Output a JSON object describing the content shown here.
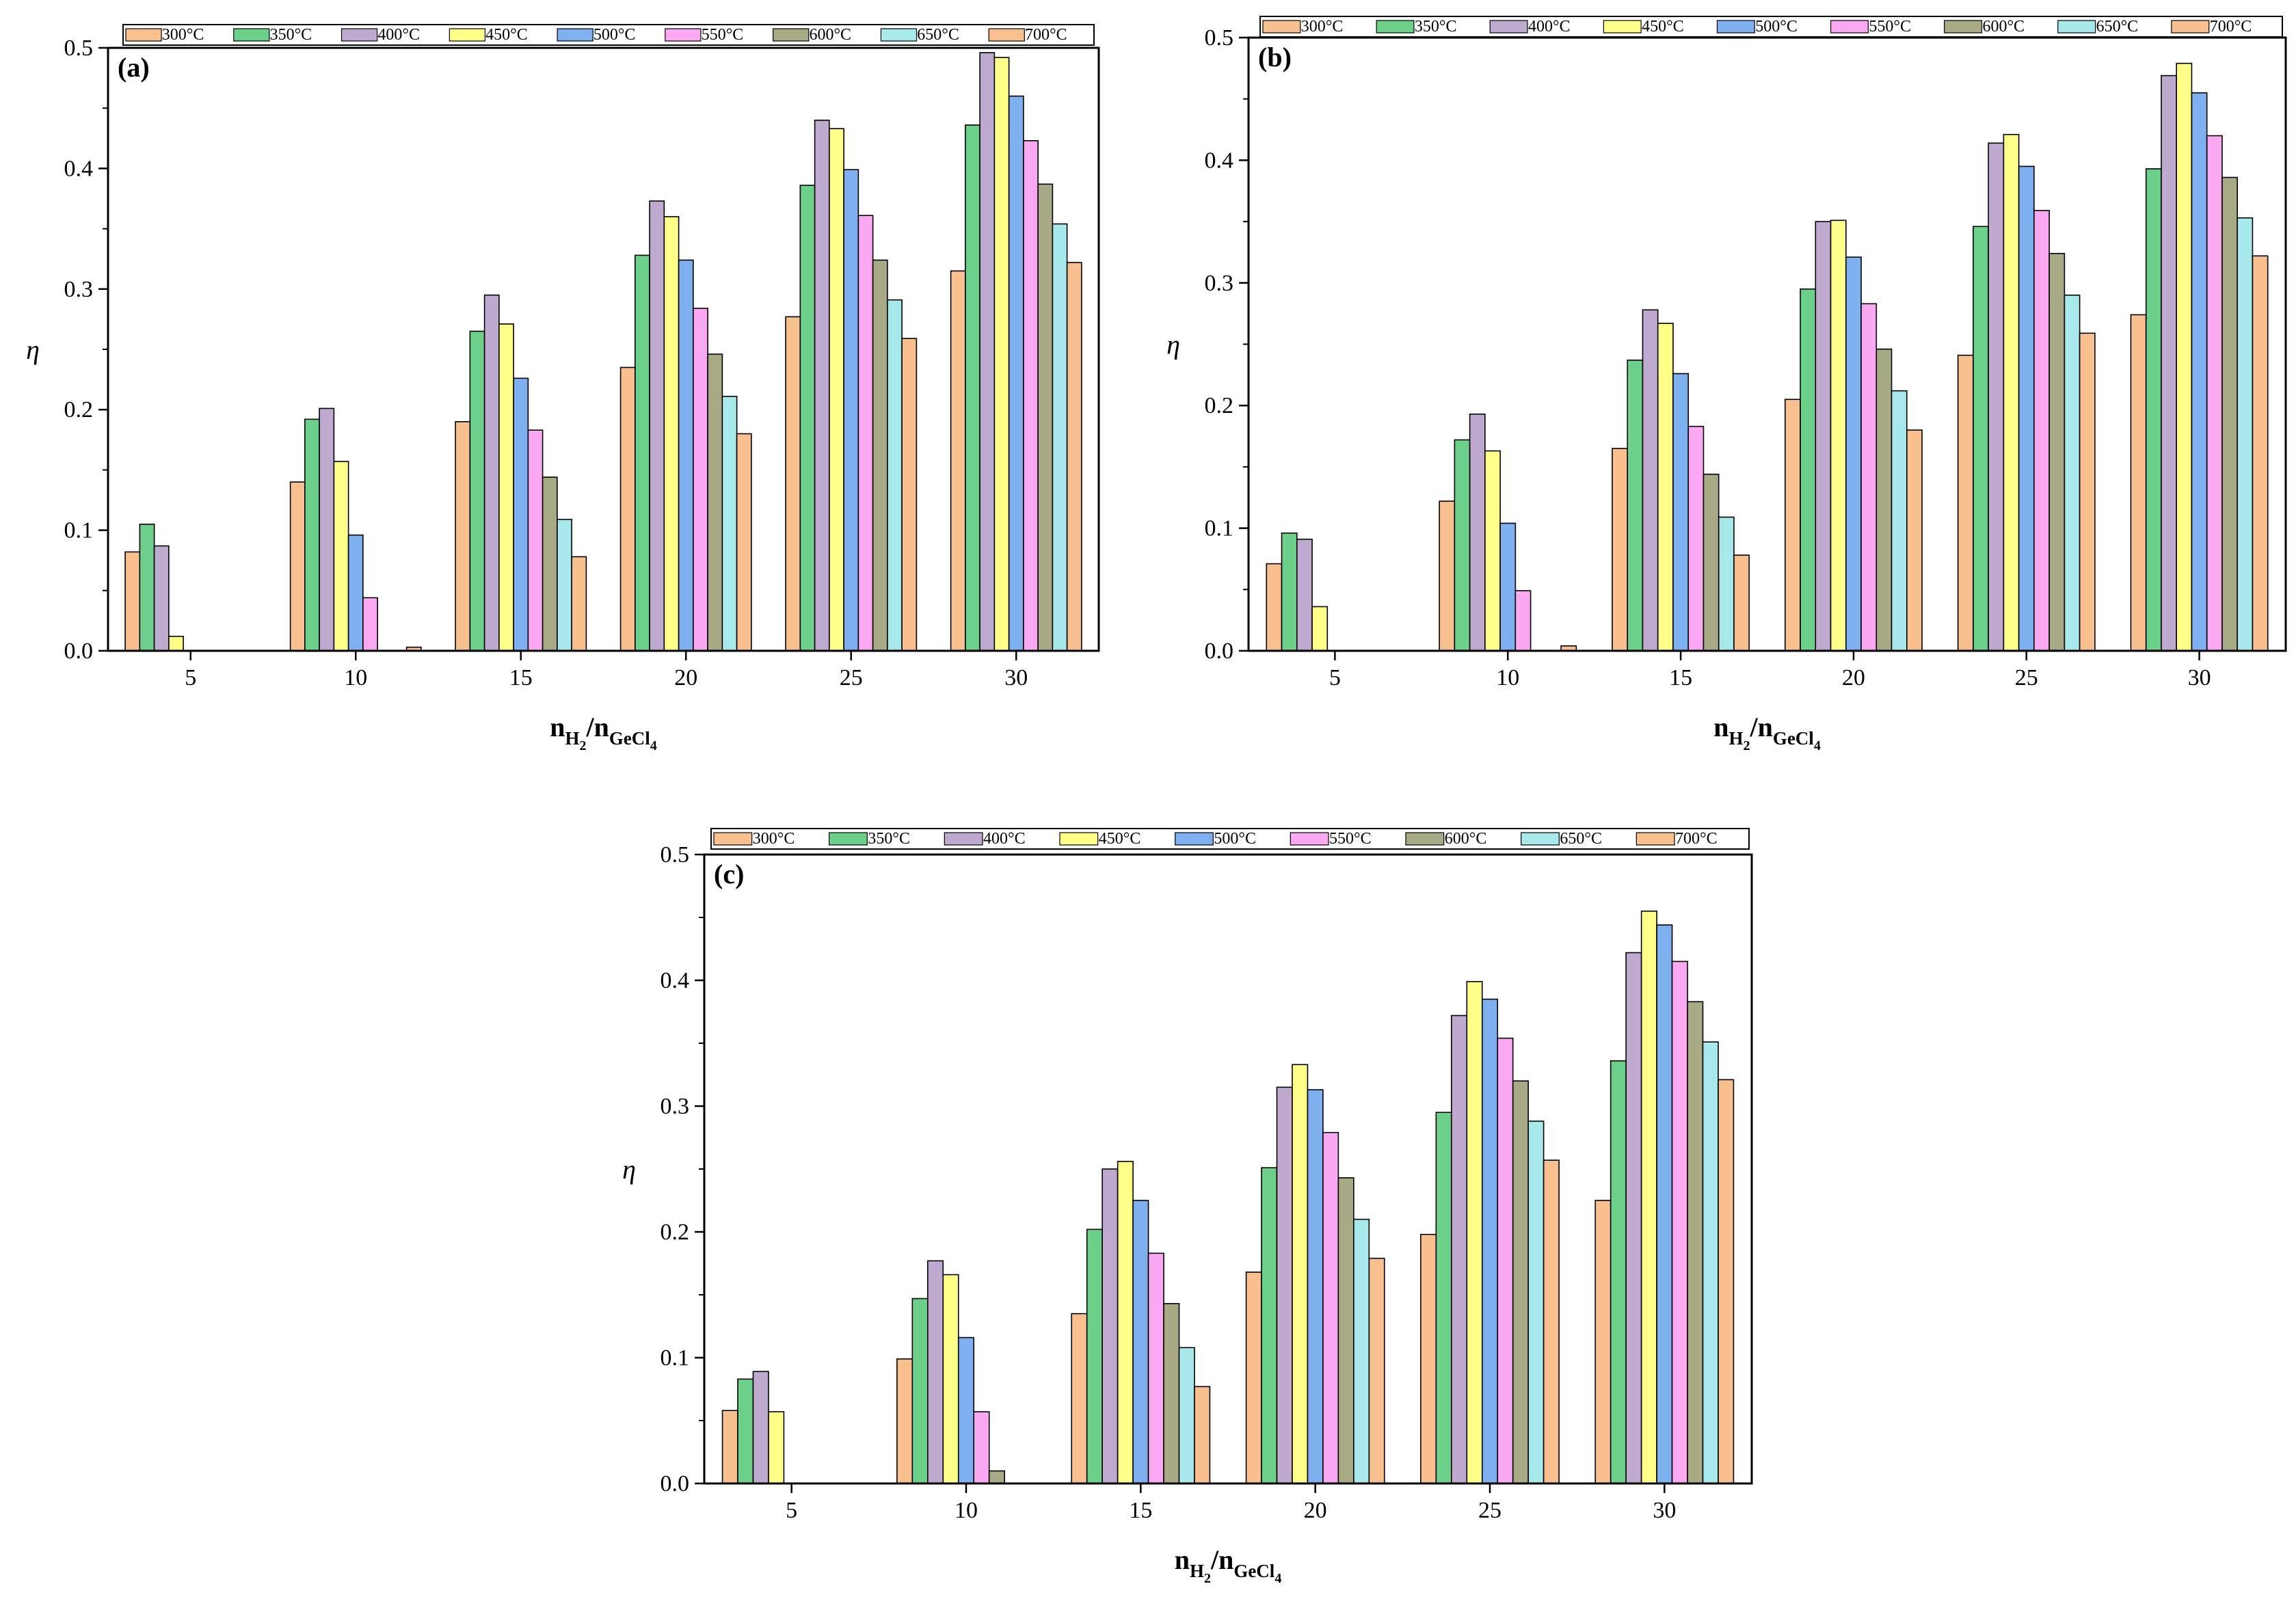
{
  "series_style": {
    "names": [
      "300°C",
      "350°C",
      "400°C",
      "450°C",
      "500°C",
      "550°C",
      "600°C",
      "650°C",
      "700°C"
    ],
    "colors": [
      "#F9C08F",
      "#6DD08A",
      "#BFAACF",
      "#FFFF8A",
      "#7EB0F0",
      "#FBA8F3",
      "#A8A985",
      "#A7E8EA",
      "#F9C08F"
    ]
  },
  "axes": {
    "ylabel": "η",
    "xlabel_main": "n",
    "xlabel_sub1": "H",
    "xlabel_sub1b": "2",
    "xlabel_sep": "/n",
    "xlabel_sub2": "GeCl",
    "xlabel_sub2b": "4"
  },
  "chart_data": [
    {
      "type": "bar",
      "title": "(a)",
      "categories": [
        "5",
        "10",
        "15",
        "20",
        "25",
        "30"
      ],
      "ylim": [
        0,
        0.5
      ],
      "yticks": [
        "0.0",
        "0.1",
        "0.2",
        "0.3",
        "0.4",
        "0.5"
      ],
      "ylabel": "η",
      "xlabel": "nH2/nGeCl4",
      "series": [
        {
          "name": "300°C",
          "values": [
            0.082,
            0.14,
            0.19,
            0.235,
            0.277,
            0.315
          ]
        },
        {
          "name": "350°C",
          "values": [
            0.105,
            0.192,
            0.265,
            0.328,
            0.386,
            0.436
          ]
        },
        {
          "name": "400°C",
          "values": [
            0.087,
            0.201,
            0.295,
            0.373,
            0.44,
            0.496
          ]
        },
        {
          "name": "450°C",
          "values": [
            0.012,
            0.157,
            0.271,
            0.36,
            0.433,
            0.492
          ]
        },
        {
          "name": "500°C",
          "values": [
            0.0,
            0.096,
            0.226,
            0.324,
            0.399,
            0.46
          ]
        },
        {
          "name": "550°C",
          "values": [
            0.0,
            0.044,
            0.183,
            0.284,
            0.361,
            0.423
          ]
        },
        {
          "name": "600°C",
          "values": [
            0.0,
            0.0,
            0.144,
            0.246,
            0.324,
            0.387
          ]
        },
        {
          "name": "650°C",
          "values": [
            0.0,
            0.0,
            0.109,
            0.211,
            0.291,
            0.354
          ]
        },
        {
          "name": "700°C",
          "values": [
            0.0,
            0.003,
            0.078,
            0.18,
            0.259,
            0.322
          ]
        }
      ]
    },
    {
      "type": "bar",
      "title": "(b)",
      "categories": [
        "5",
        "10",
        "15",
        "20",
        "25",
        "30"
      ],
      "ylim": [
        0,
        0.5
      ],
      "yticks": [
        "0.0",
        "0.1",
        "0.2",
        "0.3",
        "0.4",
        "0.5"
      ],
      "ylabel": "η",
      "xlabel": "nH2/nGeCl4",
      "series": [
        {
          "name": "300°C",
          "values": [
            0.071,
            0.122,
            0.165,
            0.205,
            0.241,
            0.274
          ]
        },
        {
          "name": "350°C",
          "values": [
            0.096,
            0.172,
            0.237,
            0.295,
            0.346,
            0.393
          ]
        },
        {
          "name": "400°C",
          "values": [
            0.091,
            0.193,
            0.278,
            0.35,
            0.414,
            0.469
          ]
        },
        {
          "name": "450°C",
          "values": [
            0.036,
            0.163,
            0.267,
            0.351,
            0.421,
            0.479
          ]
        },
        {
          "name": "500°C",
          "values": [
            0.0,
            0.104,
            0.226,
            0.321,
            0.395,
            0.455
          ]
        },
        {
          "name": "550°C",
          "values": [
            0.0,
            0.049,
            0.183,
            0.283,
            0.359,
            0.42
          ]
        },
        {
          "name": "600°C",
          "values": [
            0.0,
            0.0,
            0.144,
            0.246,
            0.324,
            0.386
          ]
        },
        {
          "name": "650°C",
          "values": [
            0.0,
            0.0,
            0.109,
            0.212,
            0.29,
            0.353
          ]
        },
        {
          "name": "700°C",
          "values": [
            0.0,
            0.004,
            0.078,
            0.18,
            0.259,
            0.322
          ]
        }
      ]
    },
    {
      "type": "bar",
      "title": "(c)",
      "categories": [
        "5",
        "10",
        "15",
        "20",
        "25",
        "30"
      ],
      "ylim": [
        0,
        0.5
      ],
      "yticks": [
        "0.0",
        "0.1",
        "0.2",
        "0.3",
        "0.4",
        "0.5"
      ],
      "ylabel": "η",
      "xlabel": "nH2/nGeCl4",
      "series": [
        {
          "name": "300°C",
          "values": [
            0.058,
            0.099,
            0.135,
            0.168,
            0.198,
            0.225
          ]
        },
        {
          "name": "350°C",
          "values": [
            0.083,
            0.147,
            0.202,
            0.251,
            0.295,
            0.336
          ]
        },
        {
          "name": "400°C",
          "values": [
            0.089,
            0.177,
            0.25,
            0.315,
            0.372,
            0.422
          ]
        },
        {
          "name": "450°C",
          "values": [
            0.057,
            0.166,
            0.256,
            0.333,
            0.399,
            0.455
          ]
        },
        {
          "name": "500°C",
          "values": [
            0.0,
            0.116,
            0.225,
            0.313,
            0.385,
            0.444
          ]
        },
        {
          "name": "550°C",
          "values": [
            0.0,
            0.057,
            0.183,
            0.279,
            0.354,
            0.415
          ]
        },
        {
          "name": "600°C",
          "values": [
            0.0,
            0.01,
            0.143,
            0.243,
            0.32,
            0.383
          ]
        },
        {
          "name": "650°C",
          "values": [
            0.0,
            0.0,
            0.108,
            0.21,
            0.288,
            0.351
          ]
        },
        {
          "name": "700°C",
          "values": [
            0.0,
            0.0,
            0.077,
            0.179,
            0.257,
            0.321
          ]
        }
      ]
    }
  ]
}
